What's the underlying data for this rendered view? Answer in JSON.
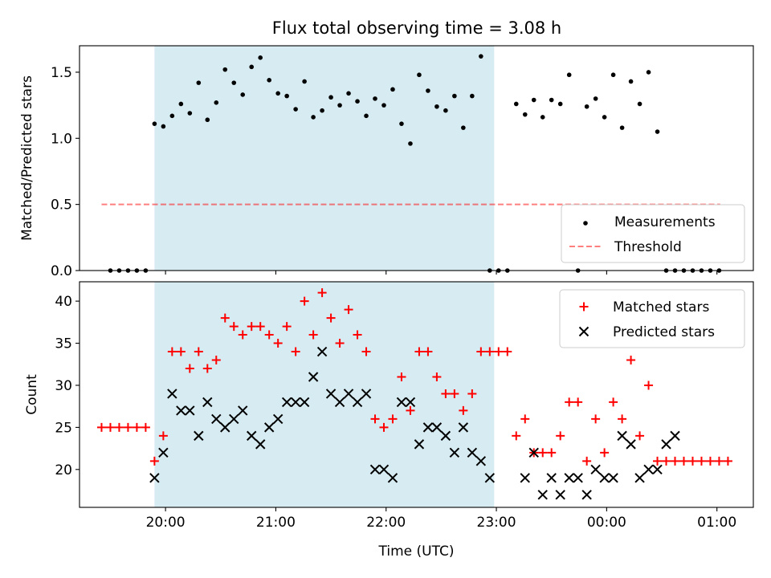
{
  "title": "Flux total observing time = 3.08 h",
  "colors": {
    "shade": "#add8e6",
    "measurements": "#000000",
    "threshold": "#ff0000",
    "matched": "#ff0000",
    "predicted": "#000000"
  },
  "chart_data": [
    {
      "type": "scatter",
      "ylabel": "Matched/Predicted stars",
      "xlabel": "",
      "xlim": [
        19.22,
        25.33
      ],
      "ylim": [
        0,
        1.7
      ],
      "yticks": [
        0.0,
        0.5,
        1.0,
        1.5
      ],
      "ytick_labels": [
        "0.0",
        "0.5",
        "1.0",
        "1.5"
      ],
      "xticks": [
        20,
        21,
        22,
        23,
        24,
        25
      ],
      "xtick_labels": [
        "",
        "",
        "",
        "",
        "",
        ""
      ],
      "shaded_span": [
        19.9,
        22.98
      ],
      "legend_position": "lower-right",
      "series": [
        {
          "name": "Measurements",
          "marker": "dot",
          "x": [
            19.5,
            19.58,
            19.66,
            19.74,
            19.82,
            19.9,
            19.98,
            20.06,
            20.14,
            20.22,
            20.3,
            20.38,
            20.46,
            20.54,
            20.62,
            20.7,
            20.78,
            20.86,
            20.94,
            21.02,
            21.1,
            21.18,
            21.26,
            21.34,
            21.42,
            21.5,
            21.58,
            21.66,
            21.74,
            21.82,
            21.9,
            21.98,
            22.06,
            22.14,
            22.22,
            22.3,
            22.38,
            22.46,
            22.54,
            22.62,
            22.7,
            22.78,
            22.86,
            22.94,
            23.02,
            23.1,
            23.18,
            23.26,
            23.34,
            23.42,
            23.5,
            23.58,
            23.66,
            23.74,
            23.82,
            23.9,
            23.98,
            24.06,
            24.14,
            24.22,
            24.3,
            24.38,
            24.46,
            24.54,
            24.62,
            24.7,
            24.78,
            24.86,
            24.94,
            25.02
          ],
          "y": [
            0,
            0,
            0,
            0,
            0,
            1.11,
            1.09,
            1.17,
            1.26,
            1.19,
            1.42,
            1.14,
            1.27,
            1.52,
            1.42,
            1.33,
            1.54,
            1.61,
            1.44,
            1.34,
            1.32,
            1.22,
            1.43,
            1.16,
            1.21,
            1.31,
            1.25,
            1.34,
            1.28,
            1.17,
            1.3,
            1.25,
            1.37,
            1.11,
            0.96,
            1.48,
            1.36,
            1.24,
            1.21,
            1.32,
            1.08,
            1.32,
            1.62,
            0,
            0,
            0,
            1.26,
            1.18,
            1.29,
            1.16,
            1.29,
            1.26,
            1.48,
            0,
            1.24,
            1.3,
            1.16,
            1.48,
            1.08,
            1.43,
            1.26,
            1.5,
            1.05,
            0,
            0,
            0,
            0,
            0,
            0,
            0
          ]
        },
        {
          "name": "Threshold",
          "style": "dashed",
          "x": [
            19.42,
            25.03
          ],
          "y": [
            0.5,
            0.5
          ]
        }
      ]
    },
    {
      "type": "scatter",
      "ylabel": "Count",
      "xlabel": "Time (UTC)",
      "xlim": [
        19.22,
        25.33
      ],
      "ylim": [
        15.5,
        42.3
      ],
      "yticks": [
        20,
        25,
        30,
        35,
        40
      ],
      "ytick_labels": [
        "20",
        "25",
        "30",
        "35",
        "40"
      ],
      "xticks": [
        20,
        21,
        22,
        23,
        24,
        25
      ],
      "xtick_labels": [
        "20:00",
        "21:00",
        "22:00",
        "23:00",
        "00:00",
        "01:00"
      ],
      "shaded_span": [
        19.9,
        22.98
      ],
      "legend_position": "upper-right",
      "series": [
        {
          "name": "Matched stars",
          "marker": "plus",
          "x": [
            19.42,
            19.5,
            19.58,
            19.66,
            19.74,
            19.82,
            19.9,
            19.98,
            20.06,
            20.14,
            20.22,
            20.3,
            20.38,
            20.46,
            20.54,
            20.62,
            20.7,
            20.78,
            20.86,
            20.94,
            21.02,
            21.1,
            21.18,
            21.26,
            21.34,
            21.42,
            21.5,
            21.58,
            21.66,
            21.74,
            21.82,
            21.9,
            21.98,
            22.06,
            22.14,
            22.22,
            22.3,
            22.38,
            22.46,
            22.54,
            22.62,
            22.7,
            22.78,
            22.86,
            22.94,
            23.02,
            23.1,
            23.18,
            23.26,
            23.34,
            23.42,
            23.5,
            23.58,
            23.66,
            23.74,
            23.82,
            23.9,
            23.98,
            24.06,
            24.14,
            24.22,
            24.3,
            24.38,
            24.46,
            24.54,
            24.62,
            24.7,
            24.78,
            24.86,
            24.94,
            25.02,
            25.1
          ],
          "y": [
            25,
            25,
            25,
            25,
            25,
            25,
            21,
            24,
            34,
            34,
            32,
            34,
            32,
            33,
            38,
            37,
            36,
            37,
            37,
            36,
            35,
            37,
            34,
            40,
            36,
            41,
            38,
            35,
            39,
            36,
            34,
            26,
            25,
            26,
            31,
            27,
            34,
            34,
            31,
            29,
            29,
            27,
            29,
            34,
            34,
            34,
            34,
            24,
            26,
            22,
            22,
            22,
            24,
            28,
            28,
            21,
            26,
            22,
            28,
            26,
            33,
            24,
            30,
            21,
            21,
            21,
            21,
            21,
            21,
            21,
            21,
            21
          ]
        },
        {
          "name": "Predicted stars",
          "marker": "x",
          "x": [
            19.9,
            19.98,
            20.06,
            20.14,
            20.22,
            20.3,
            20.38,
            20.46,
            20.54,
            20.62,
            20.7,
            20.78,
            20.86,
            20.94,
            21.02,
            21.1,
            21.18,
            21.26,
            21.34,
            21.42,
            21.5,
            21.58,
            21.66,
            21.74,
            21.82,
            21.9,
            21.98,
            22.06,
            22.14,
            22.22,
            22.3,
            22.38,
            22.46,
            22.54,
            22.62,
            22.7,
            22.78,
            22.86,
            22.94,
            23.26,
            23.34,
            23.42,
            23.5,
            23.58,
            23.66,
            23.74,
            23.82,
            23.9,
            23.98,
            24.06,
            24.14,
            24.22,
            24.3,
            24.38,
            24.46,
            24.54,
            24.62
          ],
          "y": [
            19,
            22,
            29,
            27,
            27,
            24,
            28,
            26,
            25,
            26,
            27,
            24,
            23,
            25,
            26,
            28,
            28,
            28,
            31,
            34,
            29,
            28,
            29,
            28,
            29,
            20,
            20,
            19,
            28,
            28,
            23,
            25,
            25,
            24,
            22,
            25,
            22,
            21,
            19,
            19,
            22,
            17,
            19,
            17,
            19,
            19,
            17,
            20,
            19,
            19,
            24,
            23,
            19,
            20,
            20,
            23,
            24
          ]
        }
      ]
    }
  ]
}
